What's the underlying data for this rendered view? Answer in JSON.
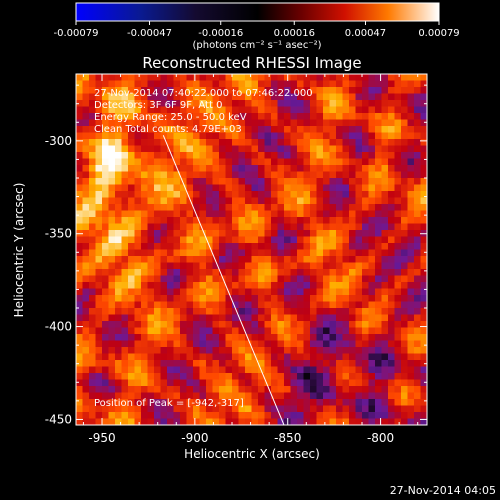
{
  "colorbar": {
    "tick_labels": [
      "-0.00079",
      "-0.00047",
      "-0.00016",
      "0.00016",
      "0.00047",
      "0.00079"
    ],
    "tick_values": [
      -0.00079,
      -0.00047,
      -0.00016,
      0.00016,
      0.00047,
      0.00079
    ],
    "range": [
      -0.00079,
      0.00079
    ],
    "unit_label": "(photons cm⁻² s⁻¹ asec⁻²)"
  },
  "timestamp": "27-Nov-2014 04:05",
  "chart_data": {
    "type": "heatmap",
    "title": "Reconstructed RHESSI Image",
    "xlabel": "Heliocentric X (arcsec)",
    "ylabel": "Heliocentric Y (arcsec)",
    "xlim": [
      -964,
      -775
    ],
    "ylim": [
      -453,
      -264
    ],
    "x_ticks": [
      -950,
      -900,
      -850,
      -800
    ],
    "x_tick_labels": [
      "-950",
      "-900",
      "-850",
      "-800"
    ],
    "y_ticks": [
      -300,
      -350,
      -400,
      -450
    ],
    "y_tick_labels": [
      "-300",
      "-350",
      "-400",
      "-450"
    ],
    "annotations": [
      "27-Nov-2014 07:40:22.000 to 07:46:22.000",
      "Detectors: 3F 6F 9F, Att 0",
      "Energy Range: 25.0 - 50.0 keV",
      "Clean    Total counts: 4.79E+03"
    ],
    "peak_label": "Position of Peak = [-942,-317]",
    "peak": [
      -942,
      -317
    ],
    "limb_line": [
      [
        -917,
        -297
      ],
      [
        -852,
        -453
      ]
    ],
    "colormap": [
      "#000000",
      "#6a1a9a",
      "#c00010",
      "#ff4a00",
      "#ffb000",
      "#ffffff"
    ]
  }
}
